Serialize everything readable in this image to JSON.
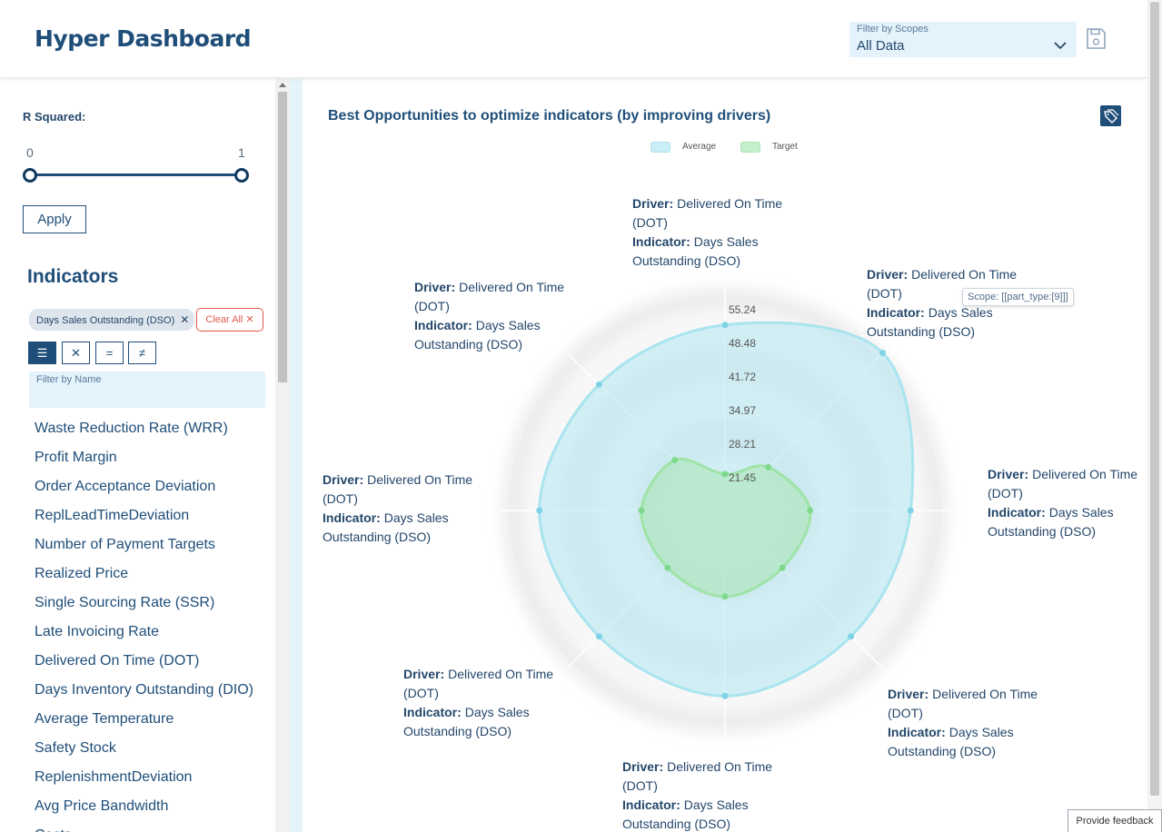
{
  "header": {
    "title": "Hyper Dashboard",
    "scope_label": "Filter by Scopes",
    "scope_value": "All Data"
  },
  "sidebar": {
    "r_squared_label": "R Squared:",
    "slider": {
      "min_label": "0",
      "max_label": "1",
      "min_value": 0,
      "max_value": 1
    },
    "apply_label": "Apply",
    "indicators_title": "Indicators",
    "selected_chip": "Days Sales Outstanding (DSO)",
    "clear_all_label": "Clear All",
    "filter_buttons": [
      "☰",
      "✕",
      "=",
      "≠"
    ],
    "filter_label": "Filter by Name",
    "filter_value": "",
    "indicators": [
      "Waste Reduction Rate (WRR)",
      "Profit Margin",
      "Order Acceptance Deviation",
      "ReplLeadTimeDeviation",
      "Number of Payment Targets",
      "Realized Price",
      "Single Sourcing Rate (SSR)",
      "Late Invoicing Rate",
      "Delivered On Time (DOT)",
      "Days Inventory Outstanding (DIO)",
      "Average Temperature",
      "Safety Stock",
      "ReplenishmentDeviation",
      "Avg Price Bandwidth",
      "Costs"
    ]
  },
  "main": {
    "chart_title": "Best Opportunities to optimize indicators (by improving drivers)",
    "tooltip": "Scope: [[part_type:[9]]]",
    "feedback_label": "Provide feedback"
  },
  "colors": {
    "brand": "#1f4e79",
    "average": "#a9e4ef",
    "target": "#9fe3a8",
    "danger": "#e05a4f"
  },
  "chart_data": {
    "type": "radar",
    "legend": [
      "Average",
      "Target"
    ],
    "legend_position": "top-center",
    "radial_ticks": [
      "55.24",
      "48.48",
      "41.72",
      "34.97",
      "28.21",
      "21.45"
    ],
    "radial_range": [
      14.69,
      55.24
    ],
    "axes": [
      {
        "driver_label": "Driver:",
        "driver": "Delivered On Time (DOT)",
        "indicator_label": "Indicator:",
        "indicator": "Days Sales Outstanding (DSO)"
      },
      {
        "driver_label": "Driver:",
        "driver": "Delivered On Time (DOT)",
        "indicator_label": "Indicator:",
        "indicator": "Days Sales Outstanding (DSO)"
      },
      {
        "driver_label": "Driver:",
        "driver": "Delivered On Time (DOT)",
        "indicator_label": "Indicator:",
        "indicator": "Days Sales Outstanding (DSO)"
      },
      {
        "driver_label": "Driver:",
        "driver": "Delivered On Time (DOT)",
        "indicator_label": "Indicator:",
        "indicator": "Days Sales Outstanding (DSO)"
      },
      {
        "driver_label": "Driver:",
        "driver": "Delivered On Time (DOT)",
        "indicator_label": "Indicator:",
        "indicator": "Days Sales Outstanding (DSO)"
      },
      {
        "driver_label": "Driver:",
        "driver": "Delivered On Time (DOT)",
        "indicator_label": "Indicator:",
        "indicator": "Days Sales Outstanding (DSO)"
      },
      {
        "driver_label": "Driver:",
        "driver": "Delivered On Time (DOT)",
        "indicator_label": "Indicator:",
        "indicator": "Days Sales Outstanding (DSO)"
      },
      {
        "driver_label": "Driver:",
        "driver": "Delivered On Time (DOT)",
        "indicator_label": "Indicator:",
        "indicator": "Days Sales Outstanding (DSO)"
      }
    ],
    "series": [
      {
        "name": "Average",
        "values": [
          52.0,
          59.5,
          52.0,
          50.5,
          52.0,
          50.5,
          52.0,
          50.5
        ]
      },
      {
        "name": "Target",
        "values": [
          22.0,
          27.0,
          31.8,
          31.0,
          32.0,
          31.0,
          31.5,
          29.0
        ]
      }
    ]
  }
}
